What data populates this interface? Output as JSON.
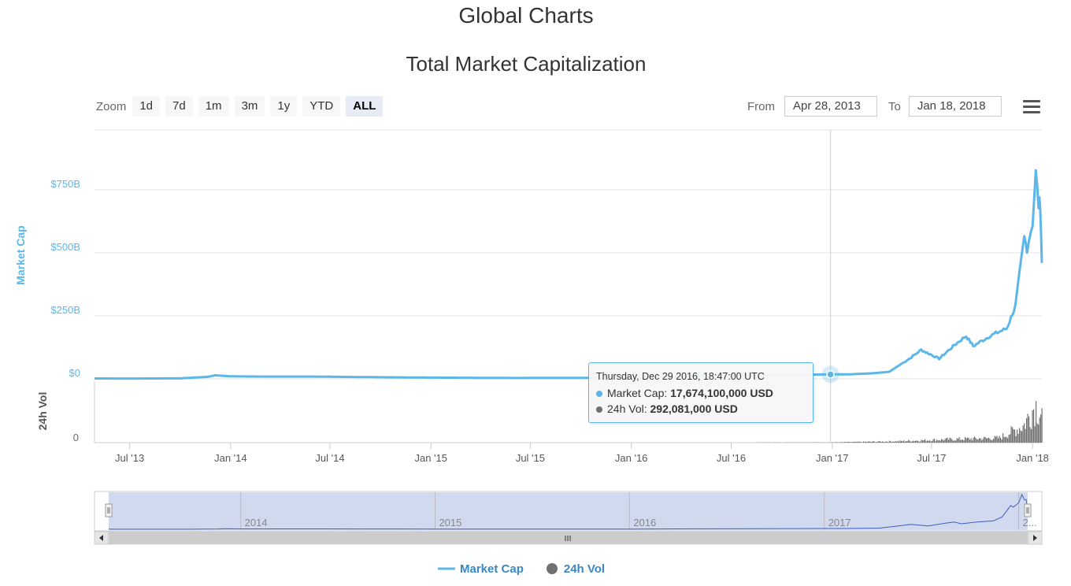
{
  "page": {
    "title": "Global Charts"
  },
  "toolbar": {
    "zoom_label": "Zoom",
    "zoom_buttons": [
      "1d",
      "7d",
      "1m",
      "3m",
      "1y",
      "YTD",
      "ALL"
    ],
    "active_zoom": "ALL",
    "from_label": "From",
    "from_value": "Apr 28, 2013",
    "to_label": "To",
    "to_value": "Jan 18, 2018",
    "menu_icon": "hamburger-menu-icon"
  },
  "tooltip": {
    "date": "Thursday, Dec 29 2016, 18:47:00 UTC",
    "market_cap_label": "Market Cap:",
    "market_cap_value": "17,674,100,000 USD",
    "volume_label": "24h Vol:",
    "volume_value": "292,081,000 USD"
  },
  "colors": {
    "market_cap": "#5cb6e8",
    "volume": "#707070",
    "navigator_fill": "#d0d9ee",
    "navigator_line": "#3b5fbf",
    "grid": "#e6e6e6"
  },
  "chart_data": {
    "type": "line",
    "title": "Total Market Capitalization",
    "x_range": [
      "2013-04-28",
      "2018-01-18"
    ],
    "x_ticks": [
      "Jul '13",
      "Jan '14",
      "Jul '14",
      "Jan '15",
      "Jul '15",
      "Jan '16",
      "Jul '16",
      "Jan '17",
      "Jul '17",
      "Jan '18"
    ],
    "y_axis": {
      "label": "Market Cap",
      "unit": "USD billions",
      "ticks": [
        "$0",
        "$250B",
        "$500B",
        "$750B"
      ],
      "range": [
        0,
        1000
      ]
    },
    "volume_axis": {
      "label": "24h Vol",
      "ticks": [
        "0"
      ]
    },
    "series": [
      {
        "name": "Market Cap",
        "unit": "USD billions",
        "x": [
          "2013-04-28",
          "2013-07-01",
          "2013-10-01",
          "2013-11-20",
          "2013-12-04",
          "2014-01-01",
          "2014-03-01",
          "2014-06-01",
          "2014-09-01",
          "2015-01-01",
          "2015-06-01",
          "2015-10-01",
          "2016-01-01",
          "2016-06-01",
          "2016-12-29",
          "2017-02-01",
          "2017-03-15",
          "2017-04-15",
          "2017-05-25",
          "2017-06-12",
          "2017-07-15",
          "2017-08-15",
          "2017-09-02",
          "2017-09-15",
          "2017-10-15",
          "2017-11-15",
          "2017-12-01",
          "2017-12-17",
          "2017-12-22",
          "2018-01-01",
          "2018-01-07",
          "2018-01-12",
          "2018-01-15",
          "2018-01-18"
        ],
        "values": [
          1.6,
          1.2,
          2.0,
          8,
          14,
          10,
          9,
          9,
          7,
          5,
          3.5,
          4,
          6,
          12,
          17.7,
          18,
          22,
          28,
          85,
          115,
          80,
          140,
          170,
          130,
          170,
          200,
          290,
          560,
          520,
          620,
          815,
          690,
          700,
          460
        ]
      },
      {
        "name": "24h Vol",
        "unit": "USD billions",
        "x": [
          "2013-04-28",
          "2016-01-01",
          "2016-12-29",
          "2017-05-01",
          "2017-08-01",
          "2017-11-01",
          "2017-12-15",
          "2018-01-05",
          "2018-01-18"
        ],
        "values": [
          0.01,
          0.05,
          0.29,
          1.5,
          3.5,
          5,
          18,
          40,
          30
        ],
        "range": [
          0,
          50
        ]
      }
    ],
    "navigator": {
      "labels": [
        "2014",
        "2015",
        "2016",
        "2017",
        "2..."
      ]
    },
    "legend": [
      "Market Cap",
      "24h Vol"
    ],
    "legend_position": "bottom-center",
    "crosshair": "2016-12-29"
  }
}
